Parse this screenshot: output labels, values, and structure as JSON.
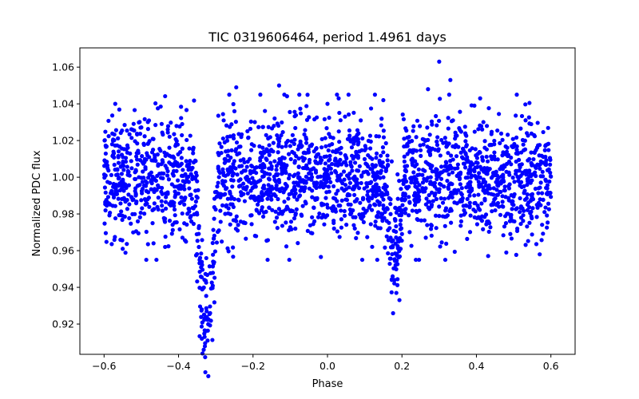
{
  "chart_data": {
    "type": "scatter",
    "title": "TIC 0319606464, period 1.4961 days",
    "xlabel": "Phase",
    "ylabel": "Normalized PDC flux",
    "xlim": [
      -0.665,
      0.665
    ],
    "ylim": [
      0.9035,
      1.0705
    ],
    "x_ticks": [
      -0.6,
      -0.4,
      -0.2,
      0.0,
      0.2,
      0.4,
      0.6
    ],
    "x_tick_labels": [
      "−0.6",
      "−0.4",
      "−0.2",
      "0.0",
      "0.2",
      "0.4",
      "0.6"
    ],
    "y_ticks": [
      0.92,
      0.94,
      0.96,
      0.98,
      1.0,
      1.02,
      1.04,
      1.06
    ],
    "y_tick_labels": [
      "0.92",
      "0.94",
      "0.96",
      "0.98",
      "1.00",
      "1.02",
      "1.04",
      "1.06"
    ],
    "grid": false,
    "legend": "none",
    "series": [
      {
        "name": "flux",
        "color": "#0000ff",
        "marker": "circle",
        "x_range": [
          -0.6,
          0.6
        ],
        "baseline": 1.0,
        "scatter_sigma": 0.0165,
        "primary_eclipse": {
          "center": -0.325,
          "depth": 0.075,
          "half_width": 0.03
        },
        "secondary_eclipse": {
          "center": 0.18,
          "depth": 0.04,
          "half_width": 0.025
        },
        "notable_points": [
          {
            "x": 0.3,
            "y": 1.063
          },
          {
            "x": -0.13,
            "y": 1.05
          },
          {
            "x": -0.245,
            "y": 1.049
          },
          {
            "x": -0.322,
            "y": 0.911
          },
          {
            "x": -0.33,
            "y": 0.913
          },
          {
            "x": 0.18,
            "y": 0.944
          },
          {
            "x": 0.175,
            "y": 0.946
          },
          {
            "x": 0.27,
            "y": 1.048
          },
          {
            "x": 0.33,
            "y": 1.053
          },
          {
            "x": 0.41,
            "y": 1.043
          },
          {
            "x": 0.03,
            "y": 1.043
          },
          {
            "x": 0.0,
            "y": 1.04
          },
          {
            "x": 0.15,
            "y": 1.042
          },
          {
            "x": -0.57,
            "y": 1.04
          },
          {
            "x": 0.57,
            "y": 0.958
          },
          {
            "x": -0.24,
            "y": 0.974
          },
          {
            "x": -0.55,
            "y": 0.961
          }
        ]
      }
    ]
  }
}
